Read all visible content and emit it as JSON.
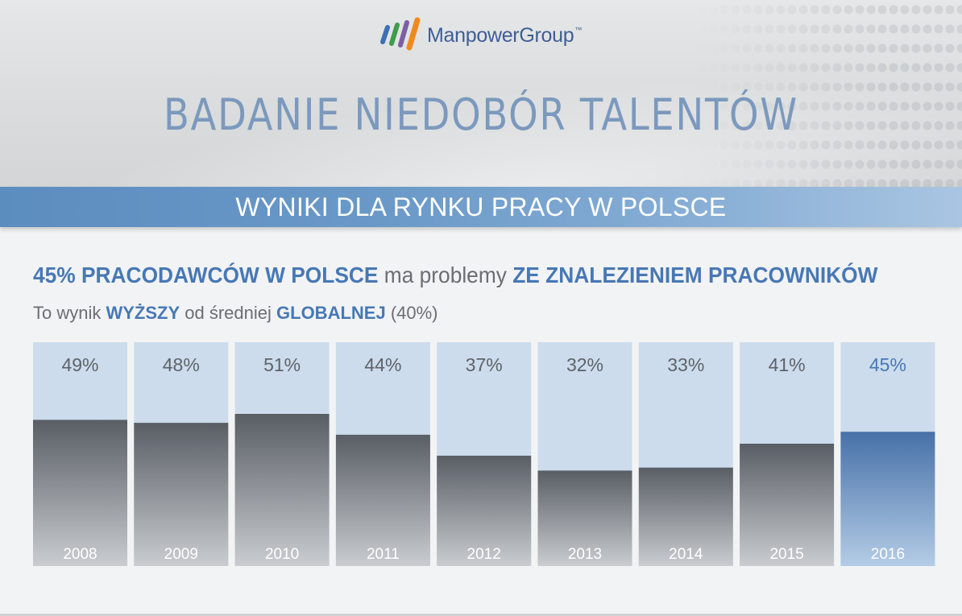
{
  "logo": {
    "name": "ManpowerGroup",
    "tm": "™",
    "colors": [
      "#3e6fb3",
      "#3e9c4a",
      "#7c5fa3",
      "#f08a1c"
    ]
  },
  "header": {
    "title": "BADANIE NIEDOBÓR TALENTÓW"
  },
  "banner": {
    "text": "WYNIKI DLA RYNKU PRACY W POLSCE"
  },
  "headline": {
    "part1": "45% PRACODAWCÓW W POLSCE",
    "part2": " ma problemy ",
    "part3": "ZE ZNALEZIENIEM PRACOWNIKÓW"
  },
  "subline": {
    "part1": "To wynik ",
    "part2": "WYŻSZY",
    "part3": " od średniej ",
    "part4": "GLOBALNEJ",
    "part5": " (40%)"
  },
  "colors": {
    "accent": "#4778b5",
    "bar_dark": "#5a5f66",
    "bar_highlight": "#4a77ad",
    "bar_track": "#ccdcec"
  },
  "chart_data": {
    "type": "bar",
    "categories": [
      "2008",
      "2009",
      "2010",
      "2011",
      "2012",
      "2013",
      "2014",
      "2015",
      "2016"
    ],
    "values": [
      49,
      48,
      51,
      44,
      37,
      32,
      33,
      41,
      45
    ],
    "value_labels": [
      "49%",
      "48%",
      "51%",
      "44%",
      "37%",
      "32%",
      "33%",
      "41%",
      "45%"
    ],
    "highlight": "2016",
    "ylim": [
      0,
      75
    ],
    "title": "",
    "xlabel": "",
    "ylabel": "",
    "grid": false,
    "legend": "none"
  }
}
